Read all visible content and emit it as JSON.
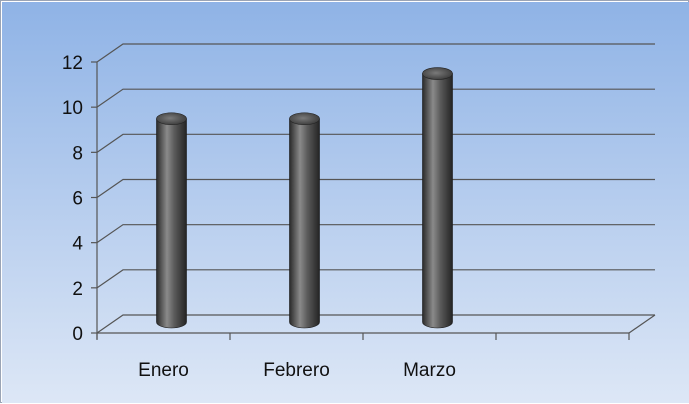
{
  "chart_data": {
    "type": "bar",
    "categories": [
      "Enero",
      "Febrero",
      "Marzo"
    ],
    "values": [
      9,
      9,
      11
    ],
    "ylim": [
      0,
      12
    ],
    "yticks": [
      0,
      2,
      4,
      6,
      8,
      10,
      12
    ],
    "style": "3d-cylinder",
    "grid": true,
    "legend": "none",
    "title": "",
    "xlabel": "",
    "ylabel": ""
  },
  "colors": {
    "background_top": "#8fb3e6",
    "background_bottom": "#dde7f6",
    "gridline": "#555555",
    "bar_dark": "#2a2a2a",
    "bar_light": "#8a8a8a"
  }
}
